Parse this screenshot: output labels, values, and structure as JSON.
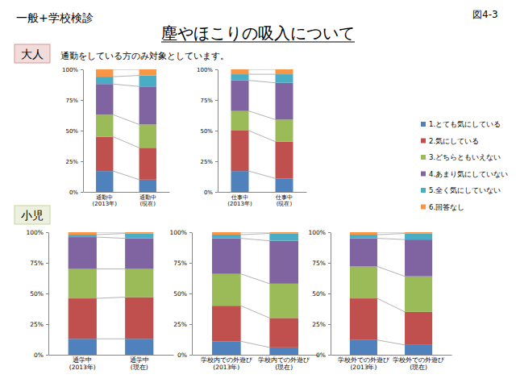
{
  "header": {
    "left": "一般+学校検診",
    "title": "塵やほこりの吸入について",
    "figure": "図4-3"
  },
  "sections": [
    {
      "label": "大人",
      "note": "通勤をしている方のみ対象としています。"
    },
    {
      "label": "小児"
    }
  ],
  "chart_data": [
    {
      "type": "bar",
      "stacked": true,
      "legend": "right",
      "categories": [
        "通勤中\n(2013年)",
        "通勤中\n(現在)"
      ],
      "series": [
        {
          "name": "1.とても気にしている",
          "color": "#4f81bd",
          "values": [
            17,
            10
          ]
        },
        {
          "name": "2.気にしている",
          "color": "#c0504d",
          "values": [
            28,
            26
          ]
        },
        {
          "name": "3.どちらともいえない",
          "color": "#9bbb59",
          "values": [
            18,
            19
          ]
        },
        {
          "name": "4.あまり気にしていない",
          "color": "#8064a2",
          "values": [
            25,
            31
          ]
        },
        {
          "name": "5.全く気にしていない",
          "color": "#4bacc6",
          "values": [
            6,
            9
          ]
        },
        {
          "name": "6.回答なし",
          "color": "#f79646",
          "values": [
            6,
            5
          ]
        }
      ],
      "ylim": [
        0,
        100
      ],
      "yticks": [
        {
          "value": 0,
          "label": "0%"
        },
        {
          "value": 25,
          "label": "25%"
        },
        {
          "value": 50,
          "label": "50%"
        },
        {
          "value": 75,
          "label": "75%"
        },
        {
          "value": 100,
          "label": "100%"
        }
      ]
    },
    {
      "type": "bar",
      "stacked": true,
      "categories": [
        "仕事中\n(2013年)",
        "仕事中\n(現在)"
      ],
      "series": [
        {
          "name": "1.とても気にしている",
          "color": "#4f81bd",
          "values": [
            17,
            11
          ]
        },
        {
          "name": "2.気にしている",
          "color": "#c0504d",
          "values": [
            33,
            30
          ]
        },
        {
          "name": "3.どちらともいえない",
          "color": "#9bbb59",
          "values": [
            16,
            18
          ]
        },
        {
          "name": "4.あまり気にしていない",
          "color": "#8064a2",
          "values": [
            25,
            30
          ]
        },
        {
          "name": "5.全く気にしていない",
          "color": "#4bacc6",
          "values": [
            5,
            7
          ]
        },
        {
          "name": "6.回答なし",
          "color": "#f79646",
          "values": [
            4,
            4
          ]
        }
      ],
      "ylim": [
        0,
        100
      ],
      "yticks": [
        {
          "value": 0,
          "label": "0%"
        },
        {
          "value": 25,
          "label": "25%"
        },
        {
          "value": 50,
          "label": "50%"
        },
        {
          "value": 75,
          "label": "75%"
        },
        {
          "value": 100,
          "label": "100%"
        }
      ]
    },
    {
      "type": "bar",
      "stacked": true,
      "categories": [
        "通学中\n(2013年)",
        "通学中\n(現在)"
      ],
      "series": [
        {
          "name": "1.とても気にしている",
          "color": "#4f81bd",
          "values": [
            13,
            13
          ]
        },
        {
          "name": "2.気にしている",
          "color": "#c0504d",
          "values": [
            33,
            34
          ]
        },
        {
          "name": "3.どちらともいえない",
          "color": "#9bbb59",
          "values": [
            24,
            23
          ]
        },
        {
          "name": "4.あまり気にしていない",
          "color": "#8064a2",
          "values": [
            26,
            25
          ]
        },
        {
          "name": "5.全く気にしていない",
          "color": "#4bacc6",
          "values": [
            2,
            4
          ]
        },
        {
          "name": "6.回答なし",
          "color": "#f79646",
          "values": [
            2,
            1
          ]
        }
      ],
      "ylim": [
        0,
        100
      ],
      "yticks": [
        {
          "value": 0,
          "label": "0%"
        },
        {
          "value": 25,
          "label": "25%"
        },
        {
          "value": 50,
          "label": "50%"
        },
        {
          "value": 75,
          "label": "75%"
        },
        {
          "value": 100,
          "label": "100%"
        }
      ]
    },
    {
      "type": "bar",
      "stacked": true,
      "categories": [
        "学校内での外遊び\n(2013年)",
        "学校内での外遊び\n(現在)"
      ],
      "series": [
        {
          "name": "1.とても気にしている",
          "color": "#4f81bd",
          "values": [
            11,
            6
          ]
        },
        {
          "name": "2.気にしている",
          "color": "#c0504d",
          "values": [
            29,
            24
          ]
        },
        {
          "name": "3.どちらともいえない",
          "color": "#9bbb59",
          "values": [
            26,
            28
          ]
        },
        {
          "name": "4.あまり気にしていない",
          "color": "#8064a2",
          "values": [
            29,
            35
          ]
        },
        {
          "name": "5.全く気にしていない",
          "color": "#4bacc6",
          "values": [
            3,
            6
          ]
        },
        {
          "name": "6.回答なし",
          "color": "#f79646",
          "values": [
            2,
            1
          ]
        }
      ],
      "ylim": [
        0,
        100
      ],
      "yticks": [
        {
          "value": 0,
          "label": "0%"
        },
        {
          "value": 25,
          "label": "25%"
        },
        {
          "value": 50,
          "label": "50%"
        },
        {
          "value": 75,
          "label": "75%"
        },
        {
          "value": 100,
          "label": "100%"
        }
      ]
    },
    {
      "type": "bar",
      "stacked": true,
      "categories": [
        "学校外での外遊び\n(2013年)",
        "学校外での外遊び\n(現在)"
      ],
      "series": [
        {
          "name": "1.とても気にしている",
          "color": "#4f81bd",
          "values": [
            12,
            8
          ]
        },
        {
          "name": "2.気にしている",
          "color": "#c0504d",
          "values": [
            34,
            27
          ]
        },
        {
          "name": "3.どちらともいえない",
          "color": "#9bbb59",
          "values": [
            26,
            29
          ]
        },
        {
          "name": "4.あまり気にしていない",
          "color": "#8064a2",
          "values": [
            23,
            30
          ]
        },
        {
          "name": "5.全く気にしていない",
          "color": "#4bacc6",
          "values": [
            3,
            5
          ]
        },
        {
          "name": "6.回答なし",
          "color": "#f79646",
          "values": [
            2,
            1
          ]
        }
      ],
      "ylim": [
        0,
        100
      ],
      "yticks": [
        {
          "value": 0,
          "label": "0%"
        },
        {
          "value": 25,
          "label": "25%"
        },
        {
          "value": 50,
          "label": "50%"
        },
        {
          "value": 75,
          "label": "75%"
        },
        {
          "value": 100,
          "label": "100%"
        }
      ]
    }
  ]
}
